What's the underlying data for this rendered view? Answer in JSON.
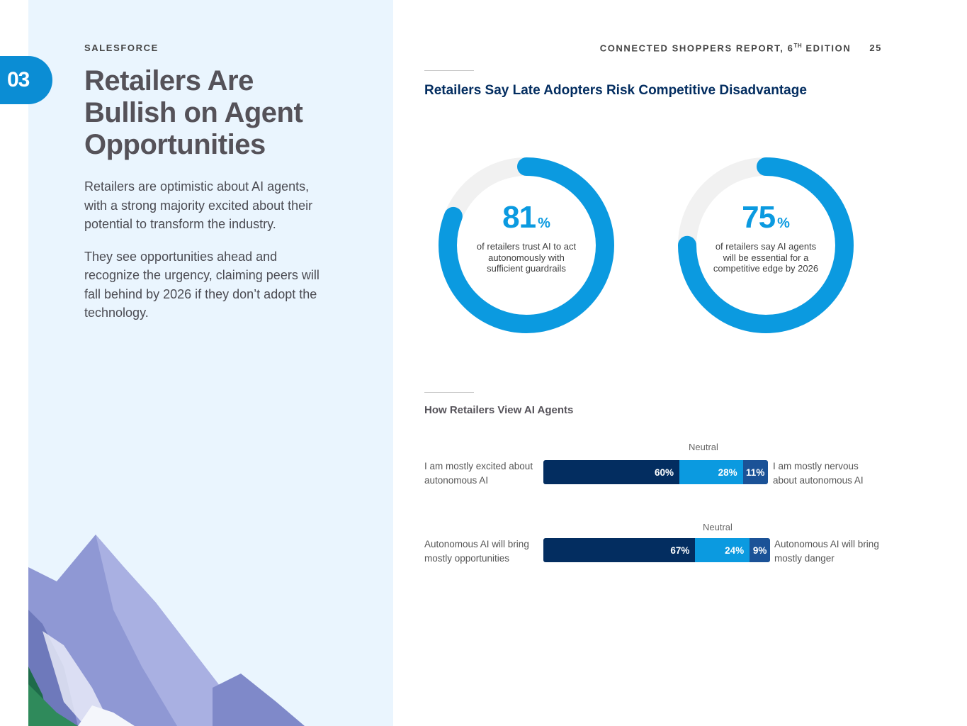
{
  "header": {
    "brand": "SALESFORCE",
    "report_title": "CONNECTED SHOPPERS REPORT, 6",
    "report_title_sup": "TH",
    "report_title_suffix": " EDITION",
    "page_number": "25"
  },
  "section": {
    "number": "03"
  },
  "left": {
    "title": "Retailers Are Bullish on Agent Opportunities",
    "paragraphs": [
      "Retailers are optimistic about AI agents, with a strong majority excited about their potential to transform the industry.",
      "They see opportunities ahead and recognize the urgency, claiming peers will fall behind by 2026 if they don’t adopt the technology."
    ]
  },
  "colors": {
    "accent": "#0b9ae0",
    "dark_navy": "#032d60",
    "mid_blue": "#1b5297",
    "track": "#f1f1f1",
    "panel_bg": "#eaf5fe"
  },
  "donuts_section": {
    "title": "Retailers Say Late Adopters Risk Competitive Disadvantage"
  },
  "bars_section": {
    "title": "How Retailers View AI Agents"
  },
  "chart_data": [
    {
      "type": "pie",
      "variant": "donut",
      "value": 81,
      "value_text": "81",
      "unit": "%",
      "caption": "of retailers trust AI to act autonomously with sufficient guardrails"
    },
    {
      "type": "pie",
      "variant": "donut",
      "value": 75,
      "value_text": "75",
      "unit": "%",
      "caption": "of retailers say AI agents will be essential for a competitive edge by 2026"
    },
    {
      "type": "bar",
      "orientation": "horizontal",
      "stacked": true,
      "rows": [
        {
          "left_label": "I am mostly excited about autonomous AI",
          "right_label": "I am mostly nervous about autonomous AI",
          "neutral_label": "Neutral",
          "segments": [
            {
              "value": 60,
              "label": "60%",
              "color": "#032d60"
            },
            {
              "value": 28,
              "label": "28%",
              "color": "#0b9ae0"
            },
            {
              "value": 11,
              "label": "11%",
              "color": "#1b5297"
            }
          ]
        },
        {
          "left_label": "Autonomous AI will bring mostly opportunities",
          "right_label": "Autonomous AI will bring mostly danger",
          "neutral_label": "Neutral",
          "segments": [
            {
              "value": 67,
              "label": "67%",
              "color": "#032d60"
            },
            {
              "value": 24,
              "label": "24%",
              "color": "#0b9ae0"
            },
            {
              "value": 9,
              "label": "9%",
              "color": "#1b5297"
            }
          ]
        }
      ]
    }
  ]
}
